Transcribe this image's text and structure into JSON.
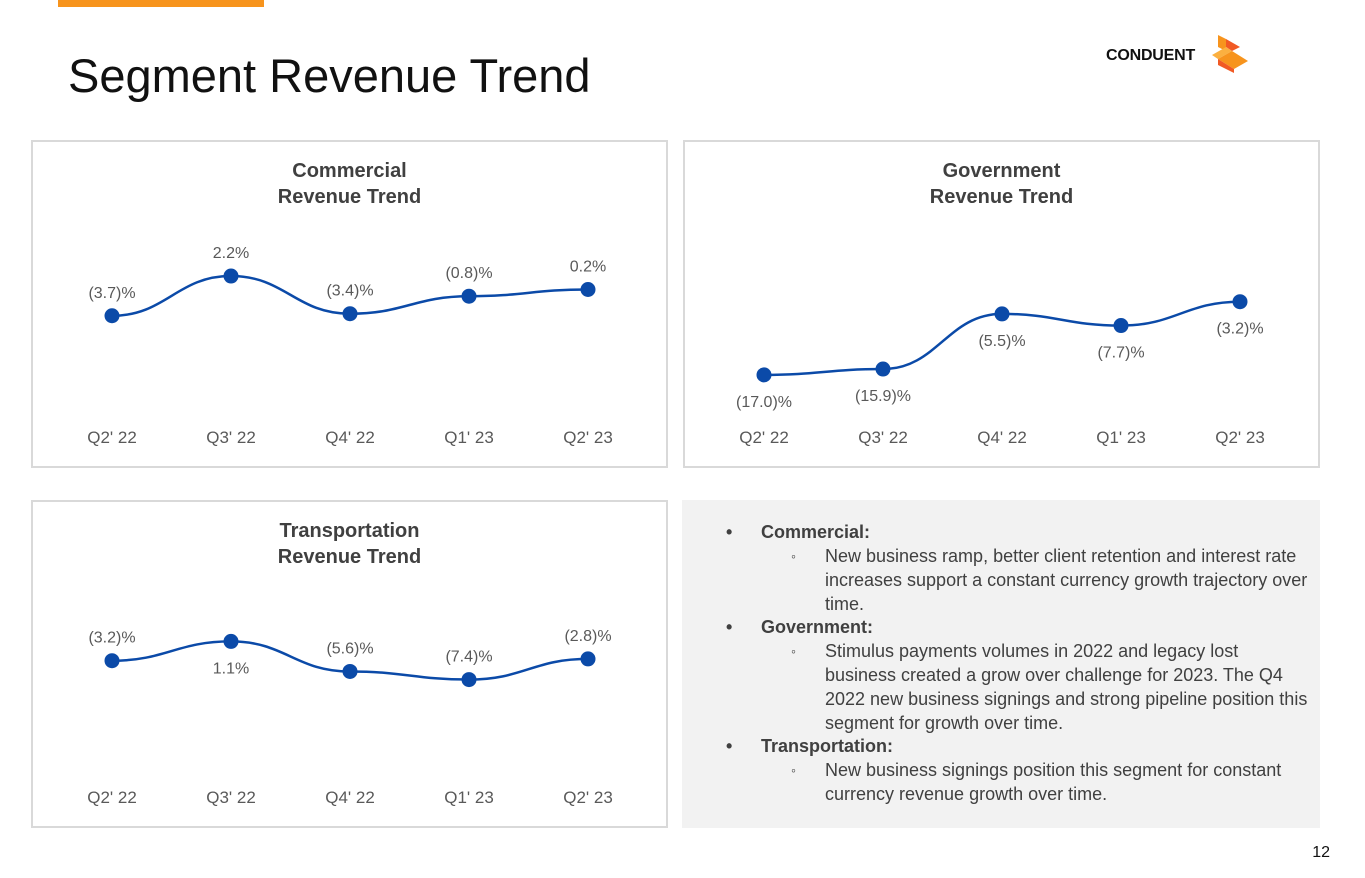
{
  "header": {
    "title": "Segment Revenue Trend",
    "logo_text": "CONDUENT",
    "accent_color": "#f7941d"
  },
  "chart_data": [
    {
      "type": "line",
      "title_lines": [
        "Commercial",
        "Revenue Trend"
      ],
      "categories": [
        "Q2' 22",
        "Q3' 22",
        "Q4' 22",
        "Q1' 23",
        "Q2' 23"
      ],
      "values": [
        -3.7,
        2.2,
        -3.4,
        -0.8,
        0.2
      ],
      "labels": [
        "(3.7)%",
        "2.2%",
        "(3.4)%",
        "(0.8)%",
        "0.2%"
      ],
      "ylim": [
        -18,
        8
      ],
      "xlabel": "",
      "ylabel": "",
      "grid": false,
      "color": "#0b4aa8"
    },
    {
      "type": "line",
      "title_lines": [
        "Government",
        "Revenue Trend"
      ],
      "categories": [
        "Q2' 22",
        "Q3' 22",
        "Q4' 22",
        "Q1' 23",
        "Q2' 23"
      ],
      "values": [
        -17.0,
        -15.9,
        -5.5,
        -7.7,
        -3.2
      ],
      "labels": [
        "(17.0)%",
        "(15.9)%",
        "(5.5)%",
        "(7.7)%",
        "(3.2)%"
      ],
      "ylim": [
        -24,
        9
      ],
      "xlabel": "",
      "ylabel": "",
      "grid": false,
      "color": "#0b4aa8"
    },
    {
      "type": "line",
      "title_lines": [
        "Transportation",
        "Revenue Trend"
      ],
      "categories": [
        "Q2' 22",
        "Q3' 22",
        "Q4' 22",
        "Q1' 23",
        "Q2' 23"
      ],
      "values": [
        -3.2,
        1.1,
        -5.6,
        -7.4,
        -2.8
      ],
      "labels": [
        "(3.2)%",
        "1.1%",
        "(5.6)%",
        "(7.4)%",
        "(2.8)%"
      ],
      "ylim": [
        -28,
        11
      ],
      "xlabel": "",
      "ylabel": "",
      "grid": false,
      "color": "#0b4aa8"
    }
  ],
  "notes": [
    {
      "heading": "Commercial:",
      "detail": "New business ramp, better client retention and interest rate increases support a constant currency growth trajectory over time."
    },
    {
      "heading": "Government:",
      "detail": "Stimulus payments volumes in 2022 and legacy lost business created a grow over challenge for 2023. The Q4 2022 new business signings and strong pipeline position this segment for growth over time."
    },
    {
      "heading": "Transportation:",
      "detail": "New business signings position this segment for constant currency revenue growth over time."
    }
  ],
  "footer": {
    "page_number": "12"
  }
}
